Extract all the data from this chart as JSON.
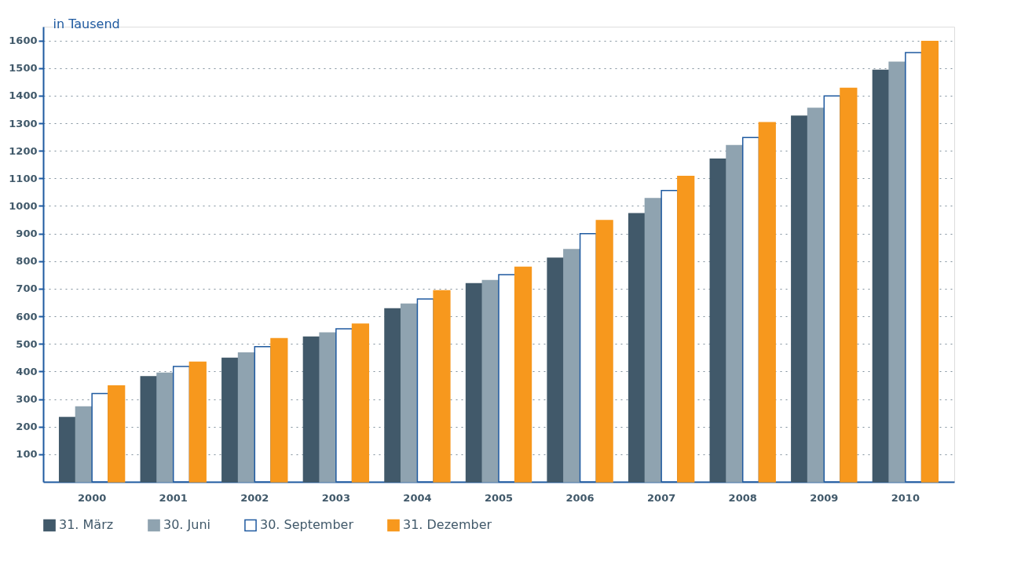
{
  "chart_data": {
    "type": "bar",
    "ylabel": "in Tausend",
    "categories": [
      "2000",
      "2001",
      "2002",
      "2003",
      "2004",
      "2005",
      "2006",
      "2007",
      "2008",
      "2009",
      "2010"
    ],
    "series": [
      {
        "name": "31. März",
        "color": "#41596a",
        "values": [
          233,
          381,
          448,
          525,
          627,
          718,
          811,
          972,
          1170,
          1326,
          1492
        ]
      },
      {
        "name": "30. Juni",
        "color": "#8fa3b0",
        "values": [
          272,
          394,
          467,
          540,
          644,
          730,
          842,
          1027,
          1219,
          1354,
          1521
        ]
      },
      {
        "name": "30. September",
        "color": "#ffffff",
        "values": [
          320,
          418,
          490,
          555,
          663,
          751,
          900,
          1056,
          1248,
          1399,
          1556
        ]
      },
      {
        "name": "31. Dezember",
        "color": "#f7981d",
        "values": [
          348,
          434,
          519,
          572,
          693,
          778,
          947,
          1107,
          1302,
          1427,
          1597
        ]
      }
    ],
    "ylim": [
      0,
      1650
    ],
    "yticks": [
      100,
      200,
      300,
      400,
      500,
      600,
      700,
      800,
      900,
      1000,
      1100,
      1200,
      1300,
      1400,
      1500,
      1600
    ],
    "grid": "y",
    "legend": "bottom left"
  }
}
